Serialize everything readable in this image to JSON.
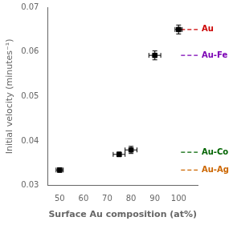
{
  "chart_data": {
    "type": "scatter",
    "x": [
      50,
      75,
      80,
      90,
      100
    ],
    "values": [
      0.0335,
      0.037,
      0.038,
      0.0592,
      0.065
    ],
    "xerr": [
      1.5,
      2.5,
      2.5,
      2.5,
      1.5
    ],
    "yerr": [
      0.0005,
      0.0005,
      0.0008,
      0.001,
      0.001
    ],
    "color": "black",
    "marker": "square",
    "xlim": [
      45,
      108
    ],
    "ylim": [
      0.03,
      0.07
    ],
    "xticks": [
      50,
      60,
      70,
      80,
      90,
      100
    ],
    "yticks": [
      0.03,
      0.04,
      0.05,
      0.06,
      0.07
    ],
    "xlabel": "Surface Au composition (at%)",
    "ylabel": "Initial velocity (minutes⁻¹)",
    "grid": false,
    "annotations": [
      {
        "label": "Au",
        "y": 0.065,
        "x_start": 101,
        "color": "#cc0000",
        "line_style": "dashed"
      },
      {
        "label": "Au-Fe",
        "y": 0.0592,
        "x_start": 101,
        "color": "#7b00b4",
        "line_style": "dashed"
      },
      {
        "label": "Au-Co",
        "y": 0.0375,
        "x_start": 101,
        "color": "#006400",
        "line_style": "dashed"
      },
      {
        "label": "Au-Ag",
        "y": 0.0335,
        "x_start": 101,
        "color": "#cc6600",
        "line_style": "dashed"
      }
    ]
  }
}
